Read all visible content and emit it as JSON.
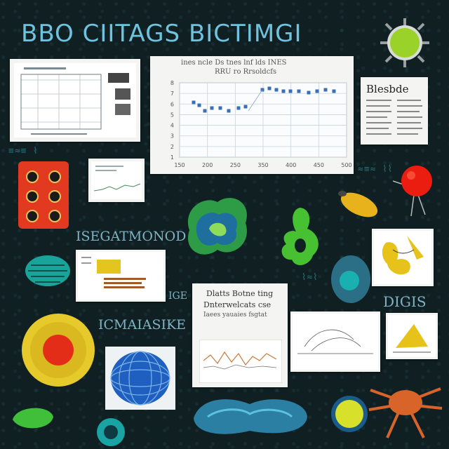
{
  "header": {
    "title": "BBO CIITAGS  BICTIMGI"
  },
  "chart_main": {
    "title_lines": [
      "ines ncle Ds tnes lnf lds INES",
      "RRU ro Rrsoldcfs"
    ],
    "x_ticks": [
      "150",
      "200",
      "250",
      "350",
      "400",
      "450",
      "500"
    ],
    "y_ticks": [
      "1",
      "2",
      "3",
      "4",
      "5",
      "6",
      "7",
      "8"
    ],
    "series_color": "#3b6fb5"
  },
  "labels": {
    "left_word": "ISEGATMONOD",
    "mid_word": "ICMAIASIKE",
    "right_word": "DIGIS",
    "small_word": "IGE",
    "book_title": "Blesbde"
  },
  "doc_card": {
    "lines": [
      "Dlatts Botne ting",
      "Dnterwelcats cse",
      "Iaees yauaies fsgtat"
    ]
  },
  "colors": {
    "background": "#0f1f22",
    "title": "#6fc3df",
    "red": "#e23a20",
    "yellow": "#e8d64b",
    "green": "#3fbf3a",
    "blue": "#2b7ed6",
    "orange": "#d9642a"
  }
}
